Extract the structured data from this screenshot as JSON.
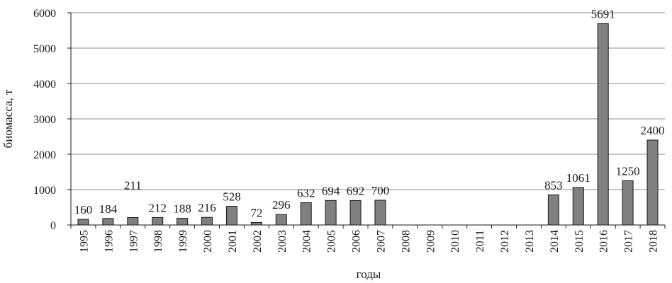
{
  "chart_data": {
    "type": "bar",
    "title": "",
    "xlabel": "годы",
    "ylabel": "биомасса, т",
    "ylim": [
      0,
      6000
    ],
    "yticks": [
      0,
      1000,
      2000,
      3000,
      4000,
      5000,
      6000
    ],
    "grid": true,
    "categories": [
      "1995",
      "1996",
      "1997",
      "1998",
      "1999",
      "2000",
      "2001",
      "2002",
      "2003",
      "2004",
      "2005",
      "2006",
      "2007",
      "2008",
      "2009",
      "2010",
      "2011",
      "2012",
      "2013",
      "2014",
      "2015",
      "2016",
      "2017",
      "2018"
    ],
    "values": [
      160,
      184,
      211,
      212,
      188,
      216,
      528,
      72,
      296,
      632,
      694,
      692,
      700,
      null,
      null,
      null,
      null,
      null,
      null,
      853,
      1061,
      5691,
      1250,
      2400
    ],
    "data_labels": [
      "160",
      "184",
      "211",
      "212",
      "188",
      "216",
      "528",
      "72",
      "296",
      "632",
      "694",
      "692",
      "700",
      "",
      "",
      "",
      "",
      "",
      "",
      "853",
      "1061",
      "5691",
      "1250",
      "2400"
    ],
    "colors": {
      "bar_fill": "#808080",
      "bar_stroke": "#1a1a1a",
      "grid": "#8c8c8c",
      "axis": "#1a1a1a"
    }
  }
}
